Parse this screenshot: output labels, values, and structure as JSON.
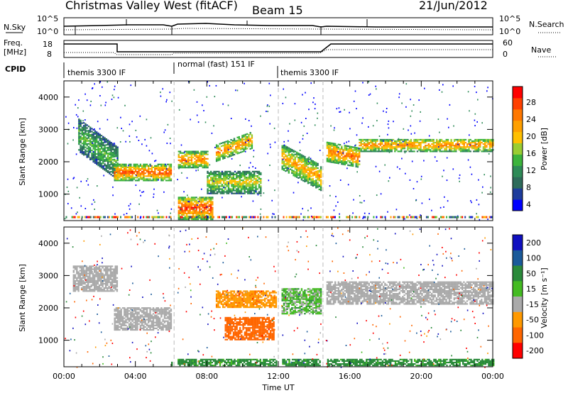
{
  "header": {
    "station": "Christmas Valley West (fitACF)",
    "beam": "Beam 15",
    "date": "21/Jun/2012"
  },
  "panels": {
    "nsky": {
      "label": "N.Sky",
      "right_label": "N.Search",
      "ticks": [
        "10^5",
        "10^0"
      ]
    },
    "freq": {
      "label_line1": "Freq.",
      "label_line2": "[MHz]",
      "ticks": [
        "18",
        "8"
      ],
      "right_label": "Nave",
      "right_ticks": [
        "60",
        "0"
      ]
    },
    "cpid": {
      "label": "CPID",
      "segments": [
        "themis 3300 IF",
        "normal (fast) 151 IF",
        "themis 3300 IF"
      ]
    }
  },
  "axes": {
    "x_title": "Time UT",
    "x_ticks": [
      "00:00",
      "04:00",
      "08:00",
      "12:00",
      "16:00",
      "20:00",
      "00:00"
    ],
    "y_title": "Slant Range [km]",
    "y_ticks": [
      "4000",
      "3000",
      "2000",
      "1000"
    ]
  },
  "power_scale": {
    "title": "Power [dB]",
    "ticks": [
      "28",
      "24",
      "20",
      "16",
      "12",
      "8",
      "4"
    ],
    "colors": [
      "#0000ff",
      "#1e3c9c",
      "#2e6b5a",
      "#2e8b57",
      "#3cb43c",
      "#9acd32",
      "#ffc000",
      "#ffa000",
      "#ff7800",
      "#ff4000",
      "#ff0000"
    ]
  },
  "velocity_scale": {
    "title": "Velocity [m s⁻¹]",
    "ticks": [
      "200",
      "100",
      "50",
      "15",
      "-15",
      "-50",
      "-100",
      "-200"
    ],
    "colors": [
      "#1010c0",
      "#1a5a9a",
      "#2a8a3a",
      "#44bb22",
      "#aaaaaa",
      "#ff9900",
      "#ff6600",
      "#ff0000"
    ]
  },
  "chart_data": {
    "type": "heatmap",
    "title": "Christmas Valley West (fitACF)",
    "xlabel": "Time UT",
    "ylabel": "Slant Range [km]",
    "xlim": [
      "00:00",
      "24:00"
    ],
    "ylim": [
      180,
      4500
    ],
    "grid": false,
    "mode_changes_ut": [
      "06:10",
      "12:00",
      "14:30"
    ],
    "power_features": [
      {
        "t0": 0.8,
        "t1": 3.0,
        "r0": 2300,
        "r1": 3300,
        "slope_km_per_h": -400,
        "power_db": 14
      },
      {
        "t0": 2.8,
        "t1": 6.0,
        "r0": 1400,
        "r1": 1900,
        "slope_km_per_h": 0,
        "power_db": 27
      },
      {
        "t0": 6.2,
        "t1": 8.0,
        "r0": 1800,
        "r1": 2300,
        "slope_km_per_h": 0,
        "power_db": 25
      },
      {
        "t0": 6.2,
        "t1": 8.3,
        "r0": 200,
        "r1": 900,
        "slope_km_per_h": 0,
        "power_db": 28
      },
      {
        "t0": 8.0,
        "t1": 11.0,
        "r0": 1000,
        "r1": 1700,
        "slope_km_per_h": 0,
        "power_db": 18
      },
      {
        "t0": 8.5,
        "t1": 10.5,
        "r0": 2000,
        "r1": 2500,
        "slope_km_per_h": 200,
        "power_db": 24
      },
      {
        "t0": 12.0,
        "t1": 14.5,
        "r0": 1800,
        "r1": 2600,
        "slope_km_per_h": -300,
        "power_db": 22
      },
      {
        "t0": 14.6,
        "t1": 16.5,
        "r0": 2000,
        "r1": 2600,
        "slope_km_per_h": -100,
        "power_db": 25
      },
      {
        "t0": 16.5,
        "t1": 24.0,
        "r0": 2300,
        "r1": 2700,
        "slope_km_per_h": 0,
        "power_db": 24
      }
    ],
    "velocity_features": [
      {
        "t0": 0.5,
        "t1": 3.0,
        "r0": 2500,
        "r1": 3300,
        "velocity_ms": 0
      },
      {
        "t0": 2.8,
        "t1": 6.0,
        "r0": 1300,
        "r1": 2000,
        "velocity_ms": 0
      },
      {
        "t0": 9.0,
        "t1": 11.7,
        "r0": 1000,
        "r1": 1700,
        "velocity_ms": -70
      },
      {
        "t0": 8.5,
        "t1": 12.0,
        "r0": 2000,
        "r1": 2500,
        "velocity_ms": -40
      },
      {
        "t0": 12.0,
        "t1": 14.5,
        "r0": 1800,
        "r1": 2600,
        "velocity_ms": 20
      },
      {
        "t0": 14.6,
        "t1": 24.0,
        "r0": 2100,
        "r1": 2800,
        "velocity_ms": 0
      },
      {
        "t0": 6.0,
        "t1": 24.0,
        "r0": 200,
        "r1": 400,
        "velocity_ms": 40
      }
    ]
  }
}
